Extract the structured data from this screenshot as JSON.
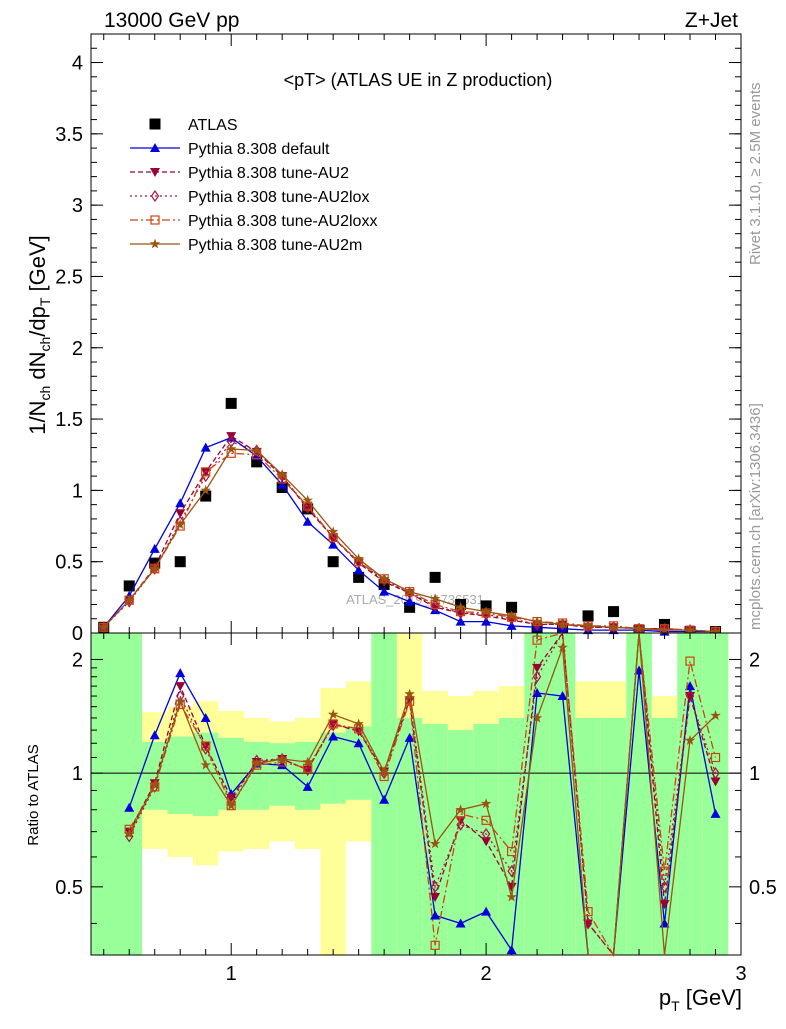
{
  "header": {
    "left": "13000 GeV pp",
    "right": "Z+Jet"
  },
  "side": {
    "rivet": "Rivet 3.1.10, ≥ 2.5M events",
    "mcplots": "mcplots.cern.ch [arXiv:1306.3436]"
  },
  "colors": {
    "atlas": "#000000",
    "default": "#0000dd",
    "au2": "#990033",
    "au2lox": "#aa1144",
    "au2loxx": "#cc4411",
    "au2m": "#995511",
    "band_green": "#99ff99",
    "band_yellow": "#ffff99"
  },
  "chart_data": [
    {
      "type": "line",
      "title": "<pT> (ATLAS UE in Z production)",
      "ylabel": "1/N_ch dN_ch/dp_T [GeV]",
      "xlim": [
        0.45,
        3.0
      ],
      "ylim": [
        0,
        4.2
      ],
      "yticks": [
        "0",
        "0.5",
        "1",
        "1.5",
        "2",
        "2.5",
        "3",
        "3.5",
        "4"
      ],
      "watermark": "ATLAS_2019_I1736531",
      "x": [
        0.5,
        0.6,
        0.7,
        0.8,
        0.9,
        1.0,
        1.1,
        1.2,
        1.3,
        1.4,
        1.5,
        1.6,
        1.7,
        1.8,
        1.9,
        2.0,
        2.1,
        2.2,
        2.3,
        2.4,
        2.5,
        2.6,
        2.7,
        2.8,
        2.9
      ],
      "series": [
        {
          "name": "ATLAS",
          "key": "atlas",
          "marker": "square",
          "values": [
            0.04,
            0.33,
            0.49,
            0.5,
            0.96,
            1.61,
            1.2,
            1.02,
            0.87,
            0.5,
            0.39,
            0.34,
            0.18,
            0.39,
            0.2,
            0.19,
            0.18,
            0.03,
            0.03,
            0.12,
            0.15,
            0.02,
            0.06,
            0.01,
            0.01
          ]
        },
        {
          "name": "Pythia 8.308 default",
          "key": "default",
          "marker": "triangle-up",
          "dash": "",
          "values": [
            0.04,
            0.26,
            0.59,
            0.91,
            1.3,
            1.37,
            1.24,
            1.04,
            0.78,
            0.62,
            0.44,
            0.29,
            0.22,
            0.16,
            0.08,
            0.08,
            0.05,
            0.04,
            0.03,
            0.02,
            0.02,
            0.02,
            0.01,
            0.01,
            0.01
          ]
        },
        {
          "name": "Pythia 8.308 tune-AU2",
          "key": "au2",
          "marker": "triangle-down",
          "dash": "5,3",
          "values": [
            0.04,
            0.23,
            0.46,
            0.84,
            1.13,
            1.38,
            1.27,
            1.1,
            0.87,
            0.67,
            0.49,
            0.36,
            0.28,
            0.18,
            0.14,
            0.12,
            0.09,
            0.06,
            0.06,
            0.04,
            0.04,
            0.03,
            0.03,
            0.02,
            0.01
          ]
        },
        {
          "name": "Pythia 8.308 tune-AU2lox",
          "key": "au2lox",
          "marker": "diamond",
          "dash": "2,3",
          "values": [
            0.04,
            0.22,
            0.45,
            0.78,
            1.1,
            1.34,
            1.28,
            1.1,
            0.88,
            0.67,
            0.5,
            0.37,
            0.28,
            0.19,
            0.14,
            0.13,
            0.1,
            0.06,
            0.06,
            0.04,
            0.04,
            0.03,
            0.03,
            0.02,
            0.01
          ]
        },
        {
          "name": "Pythia 8.308 tune-AU2loxx",
          "key": "au2loxx",
          "marker": "square-open",
          "dash": "8,3,2,3",
          "values": [
            0.04,
            0.23,
            0.45,
            0.75,
            1.13,
            1.26,
            1.25,
            1.08,
            0.89,
            0.67,
            0.5,
            0.38,
            0.29,
            0.2,
            0.15,
            0.14,
            0.11,
            0.08,
            0.07,
            0.05,
            0.05,
            0.03,
            0.03,
            0.02,
            0.01
          ]
        },
        {
          "name": "Pythia 8.308 tune-AU2m",
          "key": "au2m",
          "marker": "star",
          "dash": "",
          "values": [
            0.04,
            0.23,
            0.45,
            0.76,
            1.0,
            1.29,
            1.28,
            1.11,
            0.93,
            0.71,
            0.52,
            0.38,
            0.29,
            0.24,
            0.18,
            0.15,
            0.12,
            0.08,
            0.06,
            0.05,
            0.04,
            0.03,
            0.02,
            0.02,
            0.01
          ]
        }
      ]
    },
    {
      "type": "line",
      "ylabel": "Ratio to ATLAS",
      "xlabel": "p_T [GeV]",
      "xlim": [
        0.45,
        3.0
      ],
      "ylim": [
        0.33,
        2.35
      ],
      "yscale": "log",
      "xticks": [
        "1",
        "2",
        "3"
      ],
      "yticks": [
        "0.5",
        "1",
        "2"
      ],
      "x": [
        0.6,
        0.7,
        0.8,
        0.9,
        1.0,
        1.1,
        1.2,
        1.3,
        1.4,
        1.5,
        1.6,
        1.7,
        1.8,
        1.9,
        2.0,
        2.1,
        2.2,
        2.3,
        2.4,
        2.5,
        2.6,
        2.7,
        2.8,
        2.9
      ],
      "bands": {
        "bin_edges": [
          0.45,
          0.55,
          0.65,
          0.75,
          0.85,
          0.95,
          1.05,
          1.15,
          1.25,
          1.35,
          1.45,
          1.55,
          1.65,
          1.75,
          1.85,
          1.95,
          2.05,
          2.15,
          2.25,
          2.35,
          2.45,
          2.55,
          2.65,
          2.75,
          2.85,
          2.95
        ],
        "green_lo": [
          0.33,
          0.33,
          0.8,
          0.78,
          0.77,
          0.8,
          0.8,
          0.82,
          0.8,
          0.83,
          0.85,
          0.33,
          0.33,
          0.33,
          0.33,
          0.33,
          0.33,
          0.33,
          0.33,
          0.33,
          0.33,
          0.33,
          0.33,
          0.33,
          0.33
        ],
        "green_hi": [
          2.35,
          2.35,
          1.21,
          1.25,
          1.28,
          1.24,
          1.21,
          1.2,
          1.21,
          1.28,
          1.33,
          2.35,
          1.4,
          1.35,
          1.3,
          1.35,
          1.4,
          2.35,
          2.35,
          1.4,
          1.4,
          2.35,
          1.4,
          2.35,
          2.35
        ],
        "yellow_lo": [
          0.33,
          0.33,
          0.63,
          0.6,
          0.57,
          0.62,
          0.63,
          0.66,
          0.63,
          0.33,
          0.66,
          0.33,
          0.33,
          0.33,
          0.33,
          0.33,
          0.33,
          0.33,
          0.33,
          0.33,
          0.33,
          0.33,
          0.33,
          0.33,
          0.33
        ],
        "yellow_hi": [
          2.35,
          2.35,
          1.45,
          1.5,
          1.55,
          1.46,
          1.4,
          1.37,
          1.4,
          1.68,
          1.75,
          2.35,
          2.35,
          1.65,
          1.6,
          1.65,
          1.7,
          2.35,
          2.35,
          1.75,
          1.75,
          2.35,
          1.6,
          2.35,
          2.35
        ]
      },
      "series": [
        {
          "name": "Pythia 8.308 default",
          "key": "default",
          "marker": "triangle-up",
          "dash": "",
          "values": [
            0.81,
            1.26,
            1.84,
            1.4,
            0.88,
            1.06,
            1.05,
            0.92,
            1.25,
            1.2,
            0.85,
            1.24,
            0.42,
            0.4,
            0.43,
            0.34,
            1.63,
            1.6,
            0.33,
            0.33,
            1.87,
            0.4,
            1.7,
            0.78
          ]
        },
        {
          "name": "Pythia 8.308 tune-AU2",
          "key": "au2",
          "marker": "triangle-down",
          "dash": "5,3",
          "values": [
            0.7,
            0.94,
            1.7,
            1.18,
            0.86,
            1.07,
            1.09,
            1.02,
            1.35,
            1.29,
            1.01,
            1.56,
            0.47,
            0.75,
            0.66,
            0.5,
            1.9,
            2.4,
            0.4,
            0.33,
            2.4,
            0.45,
            1.6,
            0.95
          ]
        },
        {
          "name": "Pythia 8.308 tune-AU2lox",
          "key": "au2lox",
          "marker": "diamond",
          "dash": "2,3",
          "values": [
            0.68,
            0.92,
            1.6,
            1.16,
            0.84,
            1.08,
            1.09,
            1.02,
            1.34,
            1.31,
            1.0,
            1.58,
            0.5,
            0.73,
            0.69,
            0.55,
            1.8,
            2.4,
            0.4,
            0.33,
            2.4,
            0.5,
            1.6,
            1.0
          ]
        },
        {
          "name": "Pythia 8.308 tune-AU2loxx",
          "key": "au2loxx",
          "marker": "square-open",
          "dash": "8,3,2,3",
          "values": [
            0.71,
            0.92,
            1.52,
            1.18,
            0.82,
            1.05,
            1.07,
            1.03,
            1.35,
            1.31,
            0.98,
            1.55,
            0.35,
            0.78,
            0.75,
            0.62,
            2.25,
            2.35,
            0.43,
            0.33,
            2.4,
            0.55,
            1.98,
            1.1
          ]
        },
        {
          "name": "Pythia 8.308 tune-AU2m",
          "key": "au2m",
          "marker": "star",
          "dash": "",
          "values": [
            0.69,
            0.93,
            1.55,
            1.05,
            0.82,
            1.06,
            1.09,
            1.07,
            1.43,
            1.35,
            1.01,
            1.62,
            0.65,
            0.8,
            0.83,
            0.47,
            1.4,
            2.15,
            0.33,
            0.33,
            2.4,
            0.33,
            1.22,
            1.42
          ]
        }
      ]
    }
  ]
}
